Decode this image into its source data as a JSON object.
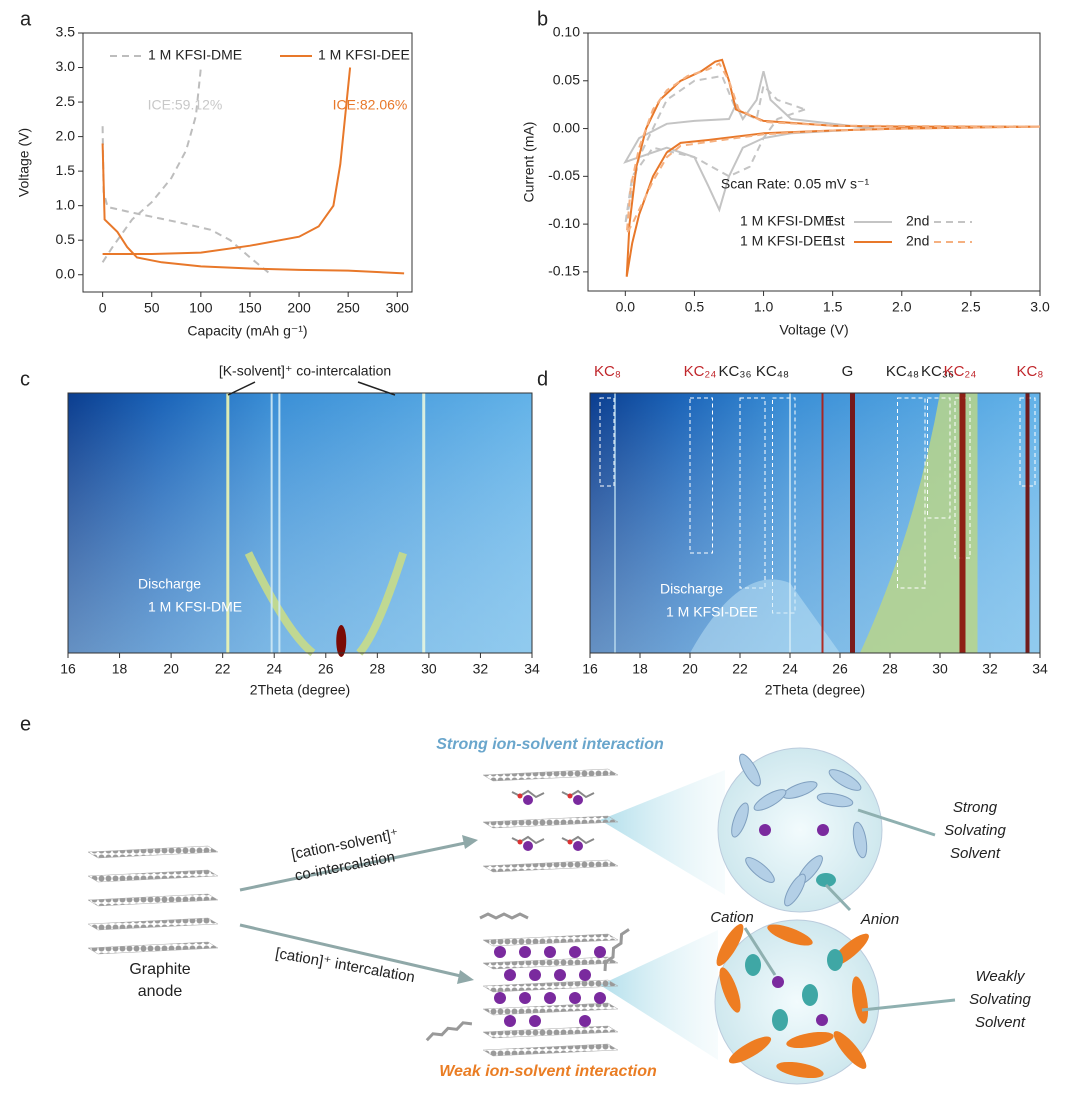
{
  "chart_data": [
    {
      "panel": "a",
      "type": "line",
      "xlabel": "Capacity (mAh g⁻¹)",
      "ylabel": "Voltage (V)",
      "xlim": [
        -20,
        315
      ],
      "xticks": [
        0,
        50,
        100,
        150,
        200,
        250,
        300
      ],
      "ylim": [
        -0.25,
        3.5
      ],
      "yticks": [
        {
          "value": 0,
          "label": "0.0"
        },
        0.5,
        {
          "value": 1,
          "label": "1.0"
        },
        1.5,
        {
          "value": 2,
          "label": "2.0"
        },
        2.5,
        {
          "value": 3,
          "label": "3.0"
        },
        3.5
      ],
      "legend": "top",
      "series": [
        {
          "name": "1 M KFSI-DME",
          "color": "#bdbdbd",
          "style": "dashed",
          "x": [
            0,
            1,
            5,
            30,
            80,
            110,
            130,
            150,
            170,
            null,
            0,
            10,
            30,
            50,
            70,
            85,
            95,
            100
          ],
          "values": [
            2.15,
            1.2,
            0.98,
            0.9,
            0.75,
            0.65,
            0.5,
            0.25,
            0.02,
            null,
            0.18,
            0.4,
            0.8,
            1.05,
            1.4,
            1.8,
            2.3,
            3.0
          ]
        },
        {
          "name": "1 M KFSI-DEE",
          "color": "#e8782a",
          "style": "solid",
          "x": [
            0,
            2,
            15,
            25,
            35,
            60,
            100,
            150,
            200,
            250,
            307,
            null,
            0,
            50,
            100,
            150,
            200,
            220,
            235,
            242,
            247,
            252
          ],
          "values": [
            1.9,
            0.8,
            0.62,
            0.4,
            0.25,
            0.18,
            0.12,
            0.09,
            0.07,
            0.06,
            0.02,
            null,
            0.3,
            0.3,
            0.32,
            0.42,
            0.55,
            0.7,
            1.0,
            1.6,
            2.3,
            3.0
          ]
        }
      ],
      "annotations": [
        {
          "text": "ICE:59.12%",
          "color": "#c8c8c8"
        },
        {
          "text": "ICE:82.06%",
          "color": "#e8782a"
        }
      ]
    },
    {
      "panel": "b",
      "type": "line",
      "xlabel": "Voltage (V)",
      "ylabel": "Current (mA)",
      "xlim": [
        -0.27,
        3.0
      ],
      "xticks": [
        {
          "value": 0,
          "label": "0.0"
        },
        0.5,
        {
          "value": 1,
          "label": "1.0"
        },
        1.5,
        {
          "value": 2,
          "label": "2.0"
        },
        2.5,
        {
          "value": 3,
          "label": "3.0"
        }
      ],
      "ylim": [
        -0.17,
        0.1
      ],
      "yticks": [
        -0.15,
        {
          "value": -0.1,
          "label": "-0.10"
        },
        -0.05,
        {
          "value": 0,
          "label": "0.00"
        },
        0.05,
        {
          "value": 0.1,
          "label": "0.10"
        }
      ],
      "legend": "lower right",
      "series": [
        {
          "group": "1 M KFSI-DME",
          "name": "1st",
          "color": "#c4c4c4",
          "style": "solid",
          "x": [
            1.8,
            1.2,
            1.0,
            0.85,
            0.75,
            0.68,
            0.6,
            0.5,
            0.3,
            0.1,
            0.0,
            0.1,
            0.3,
            0.5,
            0.75,
            0.8,
            0.85,
            0.95,
            1.0,
            1.05,
            1.2,
            1.5,
            1.8
          ],
          "values": [
            0.0,
            -0.005,
            -0.01,
            -0.02,
            -0.05,
            -0.085,
            -0.06,
            -0.03,
            -0.02,
            -0.03,
            -0.035,
            -0.01,
            0.005,
            0.008,
            0.01,
            0.025,
            0.01,
            0.03,
            0.06,
            0.03,
            0.01,
            0.005,
            0.0
          ]
        },
        {
          "group": "1 M KFSI-DME",
          "name": "2nd",
          "color": "#c4c4c4",
          "style": "dashed",
          "x": [
            1.3,
            1.1,
            1.0,
            0.9,
            0.75,
            0.5,
            0.2,
            0.05,
            0.0,
            0.1,
            0.3,
            0.5,
            0.7,
            0.8,
            0.95,
            1.0,
            1.1,
            1.3
          ],
          "values": [
            0.02,
            0.01,
            -0.01,
            -0.04,
            -0.05,
            -0.03,
            -0.02,
            -0.05,
            -0.1,
            -0.03,
            0.03,
            0.05,
            0.055,
            0.02,
            0.01,
            0.045,
            0.03,
            0.02
          ]
        },
        {
          "group": "1 M KFSI-DEE",
          "name": "1st",
          "color": "#e8782a",
          "style": "solid",
          "x": [
            3.0,
            2.0,
            1.5,
            1.0,
            0.6,
            0.4,
            0.3,
            0.2,
            0.1,
            0.05,
            0.01,
            0.03,
            0.08,
            0.15,
            0.25,
            0.4,
            0.55,
            0.65,
            0.7,
            0.75,
            0.8,
            1.0,
            1.5,
            2.0,
            3.0
          ],
          "values": [
            0.002,
            0.0,
            -0.002,
            -0.005,
            -0.012,
            -0.015,
            -0.025,
            -0.05,
            -0.09,
            -0.12,
            -0.155,
            -0.1,
            -0.04,
            0.0,
            0.03,
            0.05,
            0.06,
            0.07,
            0.072,
            0.05,
            0.02,
            0.008,
            0.003,
            0.002,
            0.002
          ]
        },
        {
          "group": "1 M KFSI-DEE",
          "name": "2nd",
          "color": "#f5b080",
          "style": "dashed",
          "x": [
            3.0,
            2.0,
            1.5,
            1.0,
            0.6,
            0.4,
            0.3,
            0.2,
            0.1,
            0.05,
            0.01,
            0.04,
            0.1,
            0.2,
            0.3,
            0.45,
            0.6,
            0.68,
            0.75,
            0.82,
            1.0,
            1.5,
            3.0
          ],
          "values": [
            0.002,
            0.0,
            -0.002,
            -0.006,
            -0.014,
            -0.018,
            -0.03,
            -0.055,
            -0.085,
            -0.1,
            -0.11,
            -0.06,
            -0.02,
            0.02,
            0.04,
            0.055,
            0.062,
            0.068,
            0.05,
            0.02,
            0.007,
            0.003,
            0.002
          ]
        }
      ],
      "annotations": [
        {
          "text": "Scan Rate: 0.05 mV s⁻¹",
          "color": "#222222"
        }
      ]
    },
    {
      "panel": "c",
      "type": "heatmap",
      "xlabel": "2Theta (degree)",
      "xlim": [
        16,
        34
      ],
      "xticks": [
        16,
        18,
        20,
        22,
        24,
        26,
        28,
        30,
        32,
        34
      ],
      "annotations": [
        {
          "text": "[K-solvent]⁺  co-intercalation",
          "color": "#222222"
        },
        {
          "text": "Discharge",
          "color": "#ffffff"
        },
        {
          "text": "1 M KFSI-DME",
          "color": "#ffffff"
        }
      ]
    },
    {
      "panel": "d",
      "type": "heatmap",
      "xlabel": "2Theta (degree)",
      "xlim": [
        16,
        34
      ],
      "xticks": [
        16,
        18,
        20,
        22,
        24,
        26,
        28,
        30,
        32,
        34
      ],
      "phases": [
        {
          "label": "KC₈",
          "color": "#c0262b"
        },
        {
          "label": "KC₂₄",
          "color": "#c0262b"
        },
        {
          "label": "KC₃₆",
          "color": "#222222"
        },
        {
          "label": "KC₄₈",
          "color": "#222222"
        },
        {
          "label": "G",
          "color": "#222222"
        },
        {
          "label": "KC₄₈",
          "color": "#222222"
        },
        {
          "label": "KC₃₆",
          "color": "#222222"
        },
        {
          "label": "KC₂₄",
          "color": "#c0262b"
        },
        {
          "label": "KC₈",
          "color": "#c0262b"
        }
      ],
      "annotations": [
        {
          "text": "Discharge",
          "color": "#ffffff"
        },
        {
          "text": "1 M KFSI-DEE",
          "color": "#ffffff"
        }
      ]
    }
  ],
  "diagram": {
    "panel": "e",
    "top_title": "Strong ion-solvent interaction",
    "bottom_title": "Weak ion-solvent interaction",
    "graphite": [
      "Graphite",
      "anode"
    ],
    "co_intercalation": [
      "[cation-solvent]⁺",
      "co-intercalation"
    ],
    "intercalation": "[cation]⁺ intercalation",
    "strong_solvent": [
      "Strong",
      "Solvating",
      "Solvent"
    ],
    "weak_solvent": [
      "Weakly",
      "Solvating",
      "Solvent"
    ],
    "anion": "Anion",
    "cation": "Cation"
  }
}
